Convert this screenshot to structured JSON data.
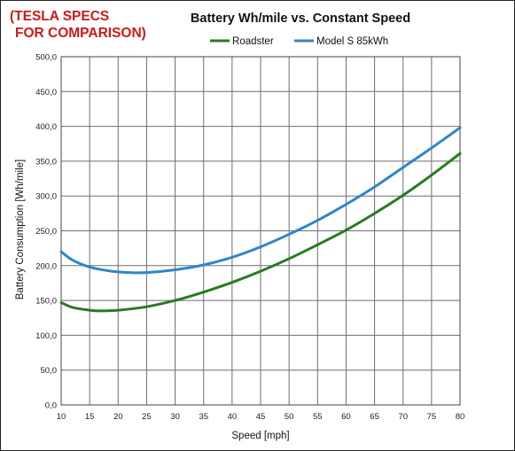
{
  "annotation": {
    "line1": "(TESLA SPECS",
    "line2": "FOR COMPARISON)",
    "color": "#cc1a1a"
  },
  "chart_data": {
    "type": "line",
    "title": "Battery Wh/mile vs. Constant Speed",
    "xlabel": "Speed [mph]",
    "ylabel": "Battery Consumption [Wh/mile]",
    "xlim": [
      10,
      80
    ],
    "ylim": [
      0,
      500
    ],
    "x_ticks": [
      "10",
      "15",
      "20",
      "25",
      "30",
      "35",
      "40",
      "45",
      "50",
      "55",
      "60",
      "65",
      "70",
      "75",
      "80"
    ],
    "y_ticks": [
      "0,0",
      "50,0",
      "100,0",
      "150,0",
      "200,0",
      "250,0",
      "300,0",
      "350,0",
      "400,0",
      "450,0",
      "500,0"
    ],
    "grid": true,
    "legend_position": "top",
    "series": [
      {
        "name": "Roadster",
        "color": "#2a7a22",
        "x": [
          10,
          12,
          15,
          17,
          20,
          25,
          30,
          35,
          40,
          45,
          50,
          55,
          60,
          65,
          70,
          75,
          80
        ],
        "y": [
          147,
          140,
          136,
          135,
          136,
          141,
          150,
          162,
          176,
          192,
          210,
          230,
          251,
          275,
          301,
          330,
          361
        ]
      },
      {
        "name": "Model S 85kWh",
        "color": "#2f86c8",
        "x": [
          10,
          12,
          15,
          18,
          20,
          22,
          25,
          30,
          35,
          40,
          45,
          50,
          55,
          60,
          65,
          70,
          75,
          80
        ],
        "y": [
          220,
          208,
          198,
          193,
          191,
          190,
          190,
          194,
          201,
          212,
          227,
          245,
          265,
          288,
          313,
          341,
          369,
          398
        ]
      }
    ]
  }
}
